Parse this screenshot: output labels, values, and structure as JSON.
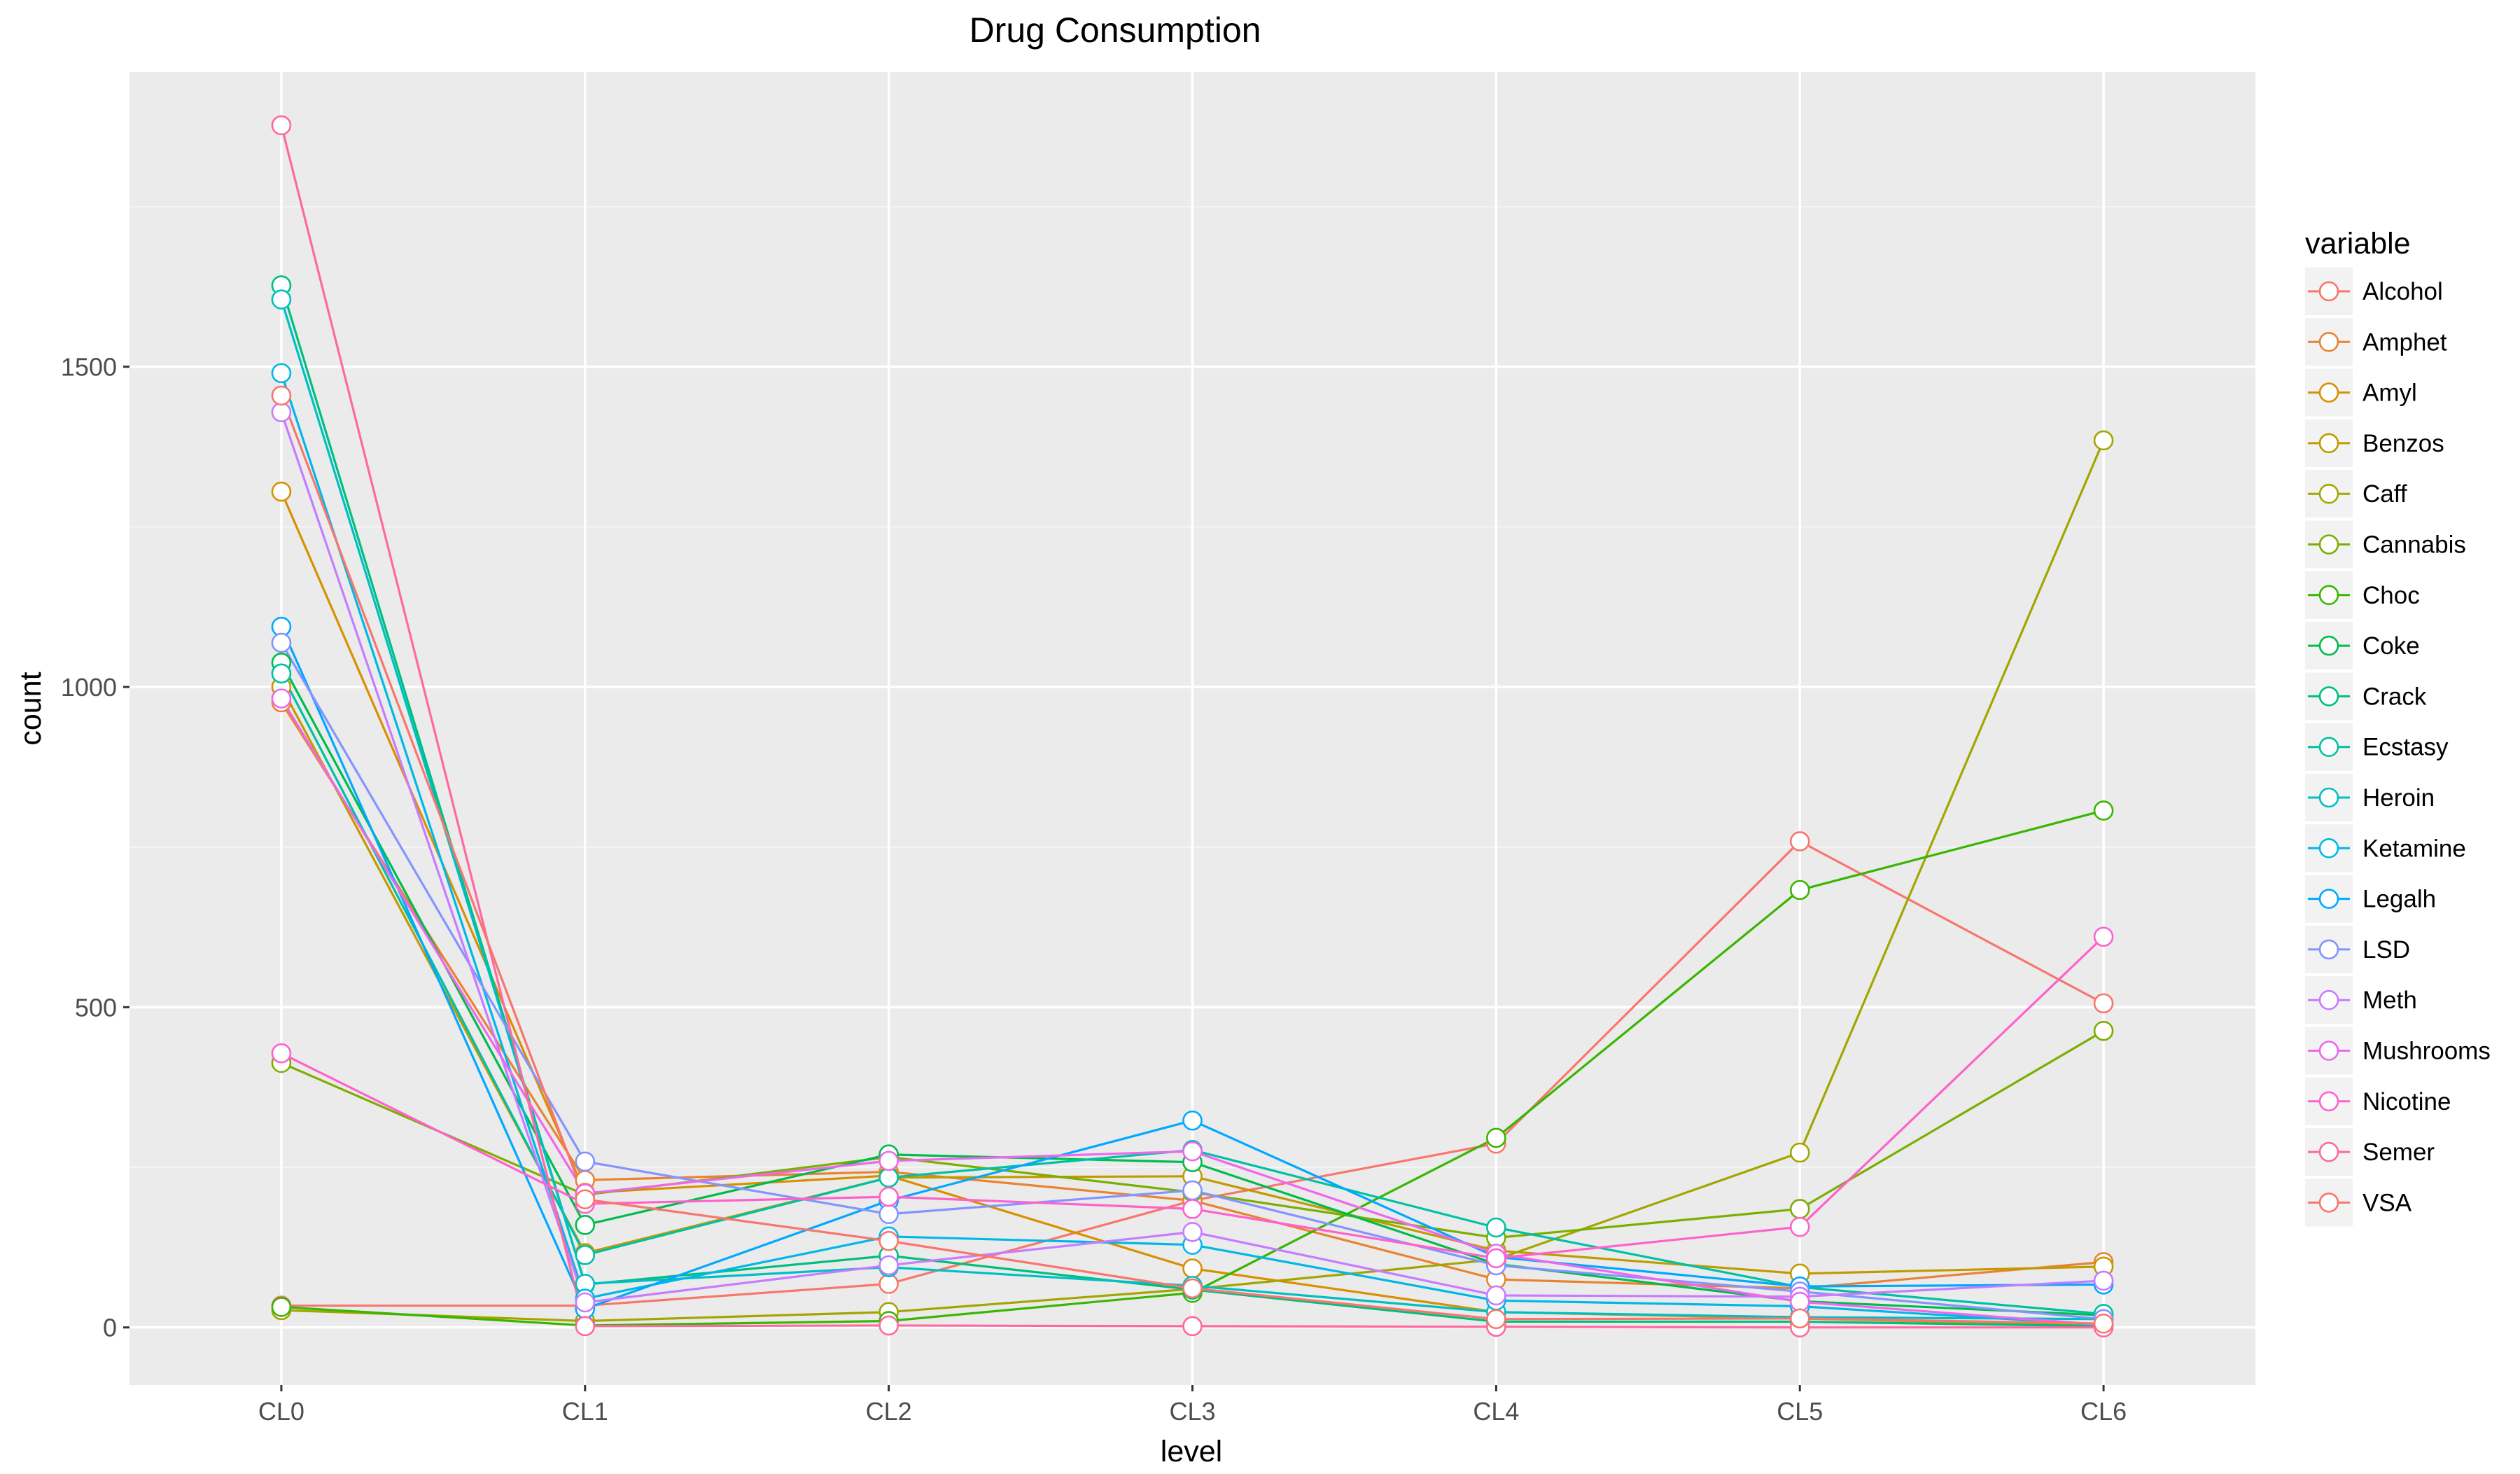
{
  "chart_data": {
    "type": "line",
    "title": "Drug Consumption",
    "xlabel": "level",
    "ylabel": "count",
    "categories": [
      "CL0",
      "CL1",
      "CL2",
      "CL3",
      "CL4",
      "CL5",
      "CL6"
    ],
    "ylim": [
      -90,
      1960
    ],
    "yticks": [
      0,
      500,
      1000,
      1500
    ],
    "grid": true,
    "marker": "open-circle",
    "legend": {
      "title": "variable",
      "position": "right"
    },
    "series": [
      {
        "name": "Alcohol",
        "color": "#F8766D",
        "values": [
          34,
          34,
          68,
          198,
          287,
          759,
          506
        ]
      },
      {
        "name": "Amphet",
        "color": "#EA8331",
        "values": [
          976,
          230,
          243,
          198,
          75,
          61,
          102
        ]
      },
      {
        "name": "Amyl",
        "color": "#D89000",
        "values": [
          1305,
          210,
          237,
          92,
          24,
          14,
          3
        ]
      },
      {
        "name": "Benzos",
        "color": "#C09B00",
        "values": [
          1000,
          116,
          234,
          236,
          120,
          84,
          95
        ]
      },
      {
        "name": "Caff",
        "color": "#A3A500",
        "values": [
          27,
          10,
          24,
          60,
          106,
          273,
          1385
        ]
      },
      {
        "name": "Cannabis",
        "color": "#7CAE00",
        "values": [
          413,
          207,
          266,
          211,
          140,
          185,
          463
        ]
      },
      {
        "name": "Choc",
        "color": "#39B600",
        "values": [
          32,
          3,
          10,
          54,
          296,
          683,
          807
        ]
      },
      {
        "name": "Coke",
        "color": "#00BB4E",
        "values": [
          1038,
          160,
          270,
          258,
          99,
          41,
          19
        ]
      },
      {
        "name": "Crack",
        "color": "#00BF7D",
        "values": [
          1627,
          67,
          112,
          59,
          9,
          9,
          2
        ]
      },
      {
        "name": "Ecstasy",
        "color": "#00C1A3",
        "values": [
          1021,
          113,
          234,
          277,
          156,
          63,
          21
        ]
      },
      {
        "name": "Heroin",
        "color": "#00BFC4",
        "values": [
          1605,
          68,
          94,
          65,
          24,
          16,
          13
        ]
      },
      {
        "name": "Ketamine",
        "color": "#00B8E7",
        "values": [
          1490,
          45,
          142,
          129,
          42,
          33,
          4
        ]
      },
      {
        "name": "Legalh",
        "color": "#00A9FF",
        "values": [
          1094,
          29,
          198,
          323,
          110,
          64,
          67
        ]
      },
      {
        "name": "LSD",
        "color": "#8494FF",
        "values": [
          1069,
          259,
          177,
          214,
          97,
          56,
          13
        ]
      },
      {
        "name": "Meth",
        "color": "#C77CFF",
        "values": [
          1429,
          39,
          97,
          149,
          50,
          48,
          73
        ]
      },
      {
        "name": "Mushrooms",
        "color": "#ED68ED",
        "values": [
          982,
          209,
          260,
          275,
          115,
          40,
          4
        ]
      },
      {
        "name": "Nicotine",
        "color": "#FF61CC",
        "values": [
          428,
          193,
          204,
          185,
          108,
          157,
          610
        ]
      },
      {
        "name": "Semer",
        "color": "#FF68A1",
        "values": [
          1877,
          2,
          3,
          2,
          1,
          0,
          0
        ]
      },
      {
        "name": "VSA",
        "color": "#F8766D",
        "values": [
          1455,
          200,
          135,
          61,
          13,
          14,
          6
        ]
      }
    ]
  }
}
